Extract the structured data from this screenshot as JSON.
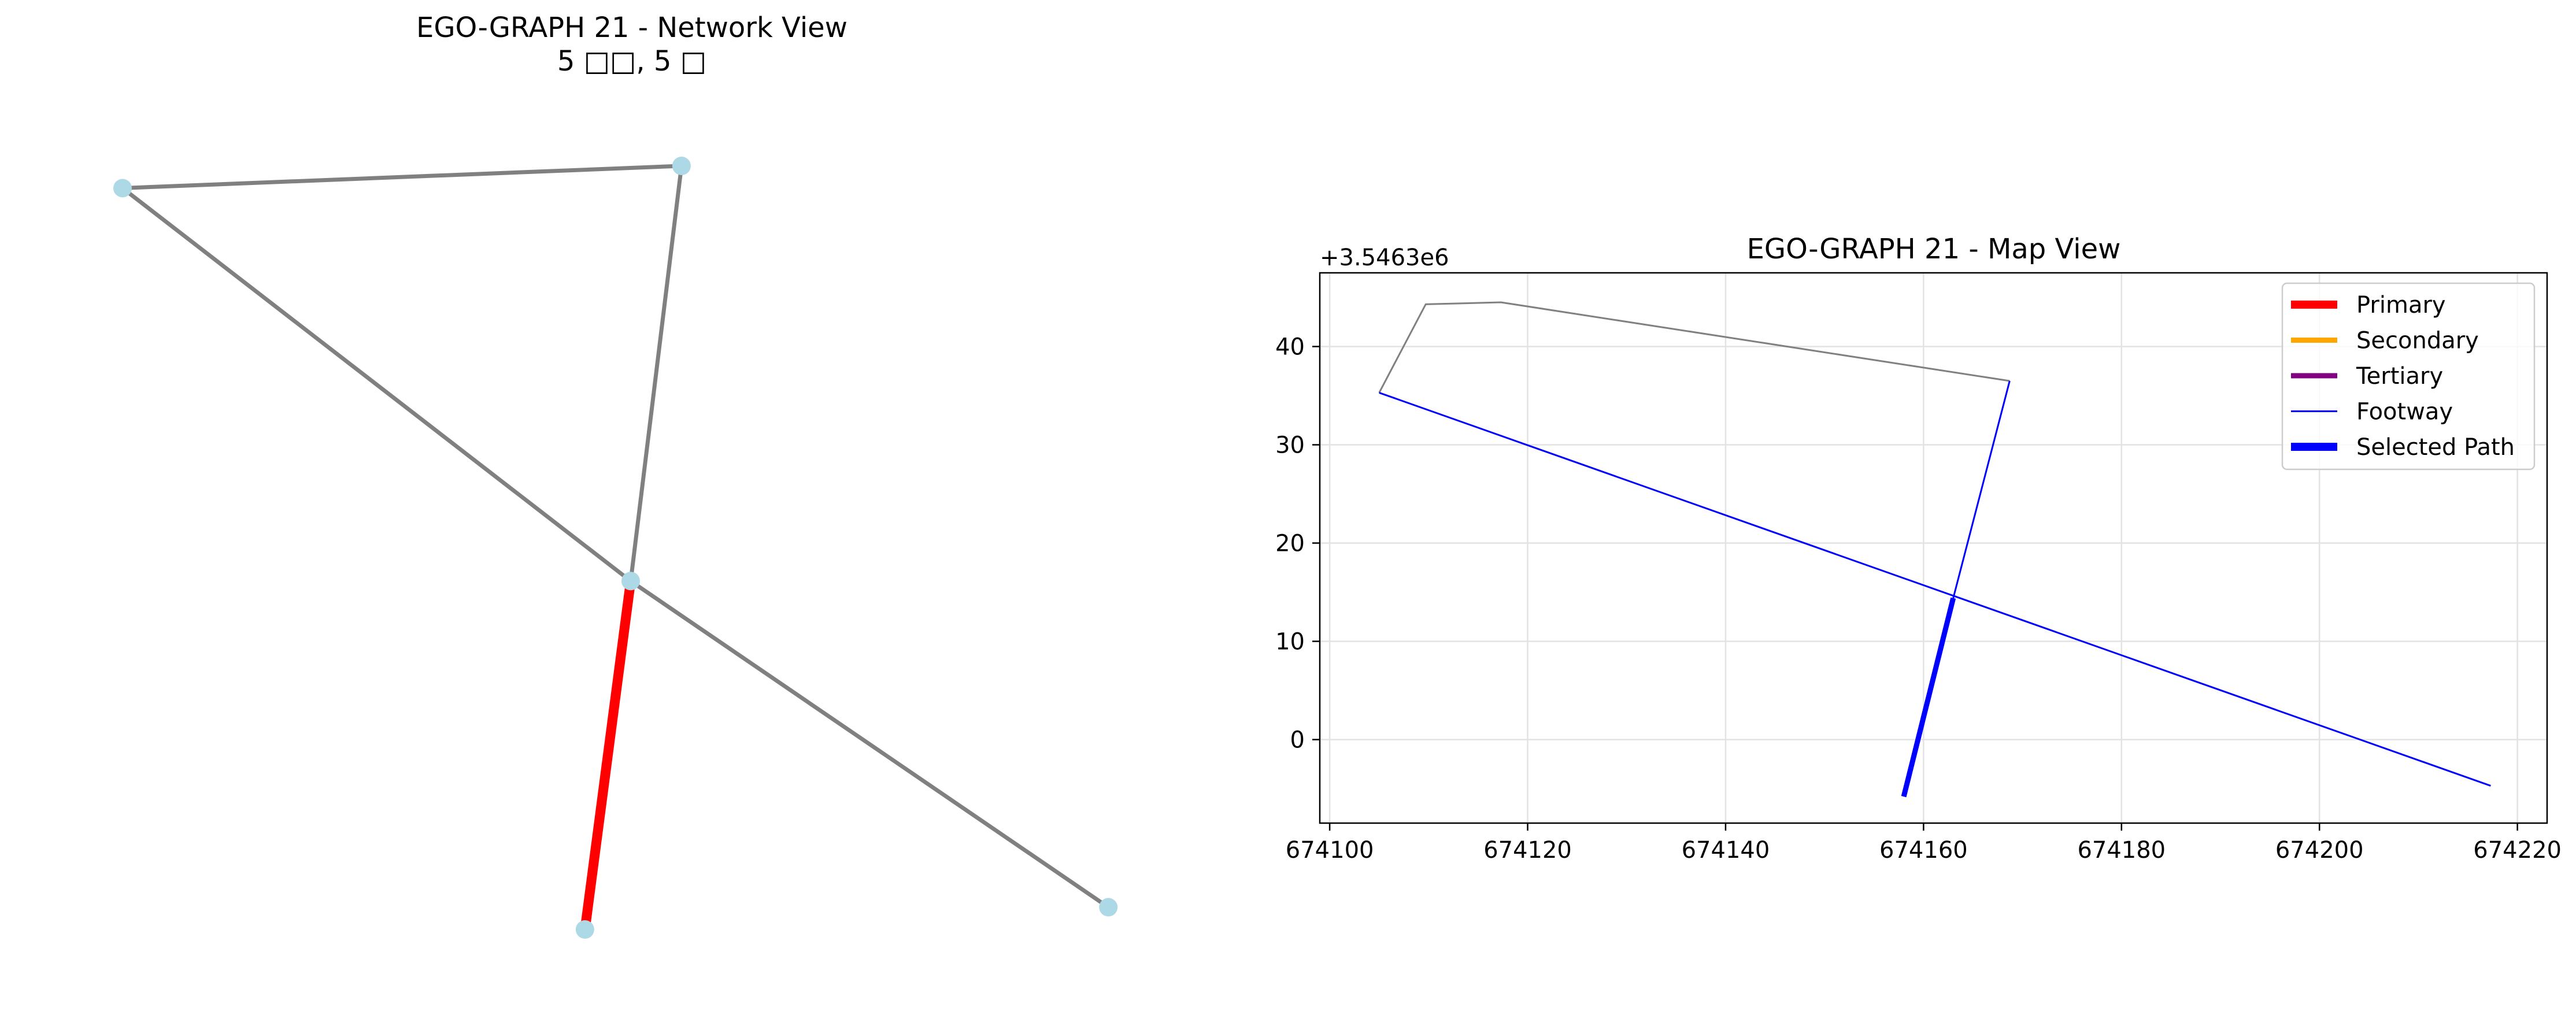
{
  "chart_data": [
    {
      "type": "network",
      "title": "EGO-GRAPH 21 - Network View",
      "subtitle": "5 □□, 5 □",
      "colors": {
        "node": "#add8e6",
        "edge": "#808080",
        "highlight": "#ff0000"
      },
      "nodes": [
        {
          "id": "n0",
          "x": 0.0,
          "y": 1.0
        },
        {
          "id": "n1",
          "x": 0.55,
          "y": 1.03
        },
        {
          "id": "n2",
          "x": 0.5,
          "y": 0.47
        },
        {
          "id": "n3",
          "x": 0.455,
          "y": 0.0
        },
        {
          "id": "n4",
          "x": 0.97,
          "y": 0.03
        }
      ],
      "edges": [
        {
          "source": "n0",
          "target": "n1",
          "highlighted": false
        },
        {
          "source": "n0",
          "target": "n2",
          "highlighted": false
        },
        {
          "source": "n2",
          "target": "n4",
          "highlighted": false
        },
        {
          "source": "n1",
          "target": "n2",
          "highlighted": false
        },
        {
          "source": "n2",
          "target": "n3",
          "highlighted": true
        }
      ]
    },
    {
      "type": "line",
      "title": "EGO-GRAPH 21 - Map View",
      "xlabel": "",
      "ylabel": "",
      "y_offset_label": "+3.5463e6",
      "xlim": [
        674099,
        674223
      ],
      "ylim": [
        -8.5,
        47.5
      ],
      "xticks": [
        674100,
        674120,
        674140,
        674160,
        674180,
        674200,
        674220
      ],
      "yticks": [
        0,
        10,
        20,
        30,
        40
      ],
      "grid": true,
      "legend_position": "top-right",
      "legend": [
        {
          "label": "Primary",
          "color": "#ff0000",
          "style": "thick"
        },
        {
          "label": "Secondary",
          "color": "#ffa500",
          "style": "medium"
        },
        {
          "label": "Tertiary",
          "color": "#800080",
          "style": "medium"
        },
        {
          "label": "Footway",
          "color": "#0000ff",
          "style": "thin"
        },
        {
          "label": "Selected Path",
          "color": "#0000ff",
          "style": "thick"
        }
      ],
      "series": [
        {
          "category": "other",
          "color": "#808080",
          "points": [
            [
              674105,
              35.3
            ],
            [
              674109.7,
              44.3
            ],
            [
              674117.3,
              44.5
            ],
            [
              674168.7,
              36.5
            ]
          ]
        },
        {
          "category": "Footway",
          "color": "#0000ff",
          "points": [
            [
              674105,
              35.3
            ],
            [
              674217.3,
              -4.7
            ]
          ]
        },
        {
          "category": "Footway",
          "color": "#0000ff",
          "points": [
            [
              674168.7,
              36.5
            ],
            [
              674163,
              14.4
            ]
          ]
        },
        {
          "category": "Selected Path",
          "color": "#0000ff",
          "points": [
            [
              674163,
              14.4
            ],
            [
              674158,
              -5.8
            ]
          ]
        }
      ]
    }
  ]
}
